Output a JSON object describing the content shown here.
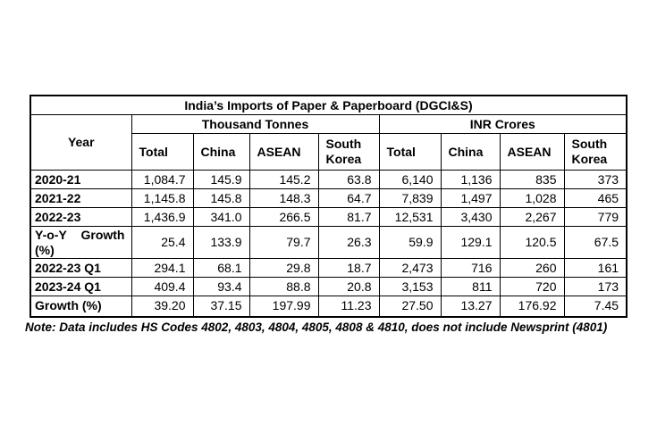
{
  "title": "India’s Imports of Paper & Paperboard (DGCI&S)",
  "table": {
    "year_header": "Year",
    "group_headers": [
      "Thousand Tonnes",
      "INR Crores"
    ],
    "sub_headers": [
      "Total",
      "China",
      "ASEAN",
      "South Korea"
    ],
    "rows": [
      {
        "label": "2020-21",
        "values": [
          "1,084.7",
          "145.9",
          "145.2",
          "63.8",
          "6,140",
          "1,136",
          "835",
          "373"
        ]
      },
      {
        "label": "2021-22",
        "values": [
          "1,145.8",
          "145.8",
          "148.3",
          "64.7",
          "7,839",
          "1,497",
          "1,028",
          "465"
        ]
      },
      {
        "label": "2022-23",
        "values": [
          "1,436.9",
          "341.0",
          "266.5",
          "81.7",
          "12,531",
          "3,430",
          "2,267",
          "779"
        ]
      },
      {
        "label": "Y-o-Y Growth (%)",
        "values": [
          "25.4",
          "133.9",
          "79.7",
          "26.3",
          "59.9",
          "129.1",
          "120.5",
          "67.5"
        ]
      },
      {
        "label": "2022-23 Q1",
        "values": [
          "294.1",
          "68.1",
          "29.8",
          "18.7",
          "2,473",
          "716",
          "260",
          "161"
        ]
      },
      {
        "label": "2023-24 Q1",
        "values": [
          "409.4",
          "93.4",
          "88.8",
          "20.8",
          "3,153",
          "811",
          "720",
          "173"
        ]
      },
      {
        "label": "Growth (%)",
        "values": [
          "39.20",
          "37.15",
          "197.99",
          "11.23",
          "27.50",
          "13.27",
          "176.92",
          "7.45"
        ]
      }
    ]
  },
  "note": "Note: Data includes HS Codes 4802, 4803, 4804, 4805, 4808 & 4810, does not include Newsprint (4801)",
  "colors": {
    "background": "#ffffff",
    "text": "#000000",
    "border": "#000000"
  }
}
